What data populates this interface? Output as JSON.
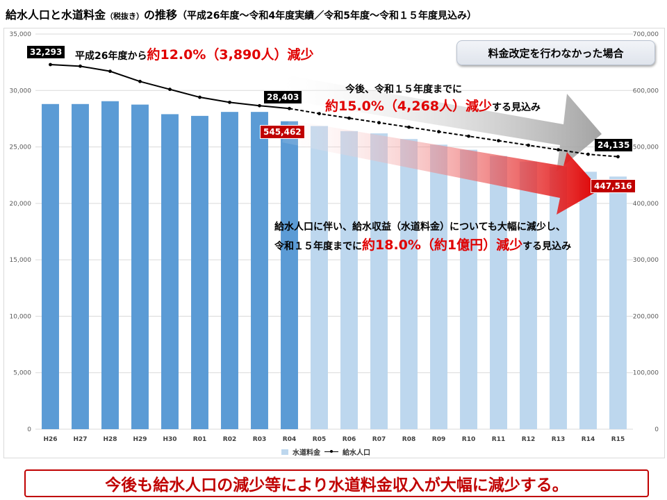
{
  "title": {
    "main": "給水人口と水道料金",
    "paren": "（税抜き）",
    "main2": "の推移",
    "sub": "（平成26年度～令和4年度実績／令和5年度～令和１５年度見込み）"
  },
  "scenario_label": "料金改定を行わなかった場合",
  "annotations": {
    "pop_past_prefix": "平成26年度から",
    "pop_past_big": "約12.0%（3,890人）減少",
    "pop_future_line1": "今後、令和１５年度までに",
    "pop_future_big": "約15.0%（4,268人）減少",
    "pop_future_suffix": "する見込み",
    "rev_line1": "給水人口に伴い、給水収益（水道料金）についても大幅に減少し、",
    "rev_line2_prefix": "令和１５年度までに",
    "rev_line2_big": "約18.0%（約1億円）減少",
    "rev_line2_suffix": "する見込み"
  },
  "value_labels": {
    "pop_start": "32,293",
    "pop_r04": "28,403",
    "pop_end": "24,135",
    "rev_r04": "545,462",
    "rev_end": "447,516"
  },
  "bottom_banner": "今後も給水人口の減少等により水道料金収入が大幅に減少する。",
  "colors": {
    "bar_actual": "#5b9bd5",
    "bar_forecast": "#bdd7ee",
    "line": "#000000",
    "accent_red": "#c00000"
  },
  "chart_data": {
    "type": "bar",
    "categories": [
      "H26",
      "H27",
      "H28",
      "H29",
      "H30",
      "R01",
      "R02",
      "R03",
      "R04",
      "R05",
      "R06",
      "R07",
      "R08",
      "R09",
      "R10",
      "R11",
      "R12",
      "R13",
      "R14",
      "R15"
    ],
    "series": [
      {
        "name": "水道料金",
        "axis": "right",
        "type": "bar",
        "values": [
          576000,
          576000,
          581000,
          575000,
          558000,
          555000,
          562000,
          562000,
          545462,
          537000,
          528000,
          524000,
          514000,
          504000,
          495000,
          484000,
          474000,
          465000,
          456000,
          447516
        ]
      },
      {
        "name": "給水人口",
        "axis": "left",
        "type": "line",
        "values": [
          32293,
          32150,
          31700,
          30800,
          30100,
          29400,
          28950,
          28650,
          28403,
          27950,
          27550,
          27150,
          26750,
          26350,
          25950,
          25550,
          25150,
          24750,
          24350,
          24135
        ],
        "dashed_from_index": 8
      }
    ],
    "actual_count": 9,
    "ylim_left": [
      0,
      35000
    ],
    "ylim_right": [
      0,
      700000
    ],
    "yticks_left": [
      "0",
      "5,000",
      "10,000",
      "15,000",
      "20,000",
      "25,000",
      "30,000",
      "35,000"
    ],
    "yticks_right": [
      "0",
      "100,000",
      "200,000",
      "300,000",
      "400,000",
      "500,000",
      "600,000",
      "700,000"
    ],
    "grid": true,
    "legend": "bottom"
  }
}
